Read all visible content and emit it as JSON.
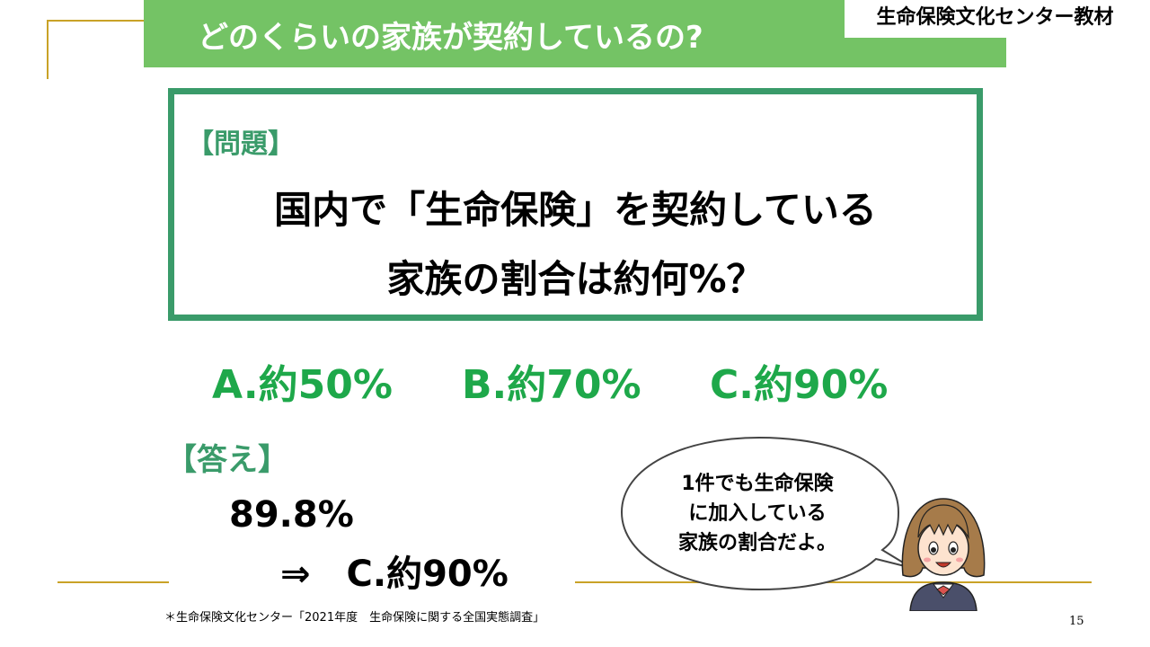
{
  "header": {
    "title": "どのくらいの家族が契約しているの?",
    "brand": "生命保険文化センター教材"
  },
  "question": {
    "label": "【問題】",
    "line1": "国内で「生命保険」を契約している",
    "line2": "家族の割合は約何%？"
  },
  "options": [
    {
      "label": "A.約50%"
    },
    {
      "label": "B.約70%"
    },
    {
      "label": "C.約90%"
    }
  ],
  "answer": {
    "label": "【答え】",
    "value": "89.8%",
    "conclusion": "⇒　C.約90%"
  },
  "speech_bubble": {
    "line1": "1件でも生命保険",
    "line2": "に加入している",
    "line3": "家族の割合だよ。"
  },
  "footnote": "＊生命保険文化センター「2021年度　生命保険に関する全国実態調査」",
  "page_number": "15",
  "colors": {
    "title_bar": "#74c365",
    "box_border": "#3a9b6a",
    "option_text": "#1ea84a",
    "accent_line": "#c9a227"
  },
  "icons": {
    "character": "girl-character-icon"
  }
}
